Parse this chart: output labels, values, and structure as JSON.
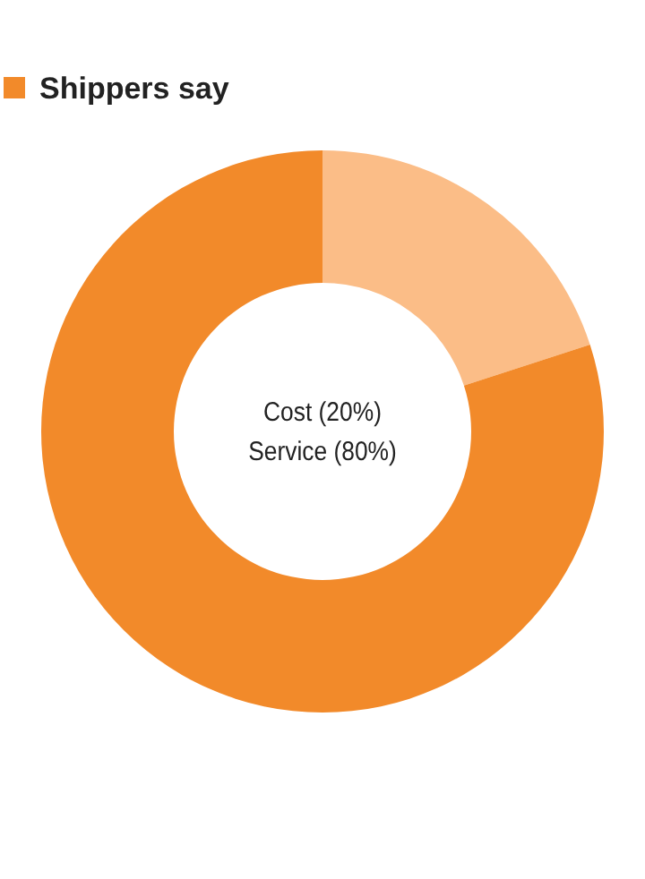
{
  "chart_data": {
    "type": "donut",
    "categories": [
      "Cost (20%)",
      "Service (80%)"
    ],
    "series": [
      {
        "name": "Shippers say",
        "color": "#f28a2a",
        "values": [
          20,
          80
        ],
        "colors": [
          "#fbbd87",
          "#f28a2a"
        ]
      }
    ],
    "legend": "top left"
  }
}
